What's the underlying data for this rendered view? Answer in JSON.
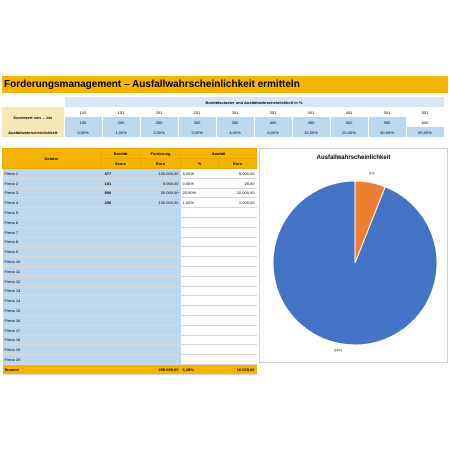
{
  "title": "Forderungsmanagement – Ausfallwahrscheinlichkeit ermitteln",
  "score_table": {
    "header": "Bonitätscluster und Ausfallwahrscheinlichkeit in %",
    "row_label_range": "Scorewert von ... bis",
    "row_label_pd": "Ausfallwahrscheinlichkeit",
    "from": [
      "100",
      "151",
      "201",
      "251",
      "301",
      "351",
      "401",
      "451",
      "501",
      "551"
    ],
    "to": [
      "150",
      "200",
      "250",
      "300",
      "350",
      "400",
      "450",
      "500",
      "550",
      "600"
    ],
    "pd": [
      "0,50%",
      "1,00%",
      "2,00%",
      "3,00%",
      "4,00%",
      "5,00%",
      "10,00%",
      "20,00%",
      "50,00%",
      "80,00%"
    ]
  },
  "debtor_table": {
    "headers": {
      "debitor": "Debitor",
      "bonitaet": "Bonität",
      "score": "Score",
      "forderung": "Forderung",
      "euro": "Euro",
      "ausfall": "Ausfall",
      "pct": "%",
      "euro2": "Euro"
    },
    "rows": [
      {
        "name": "Firma 1",
        "score": "377",
        "forderung": "100.000,00",
        "pct": "5,00%",
        "euro": "5.000,00"
      },
      {
        "name": "Firma 2",
        "score": "101",
        "forderung": "5.000,00",
        "pct": "0,50%",
        "euro": "25,00"
      },
      {
        "name": "Firma 3",
        "score": "500",
        "forderung": "50.000,00",
        "pct": "20,00%",
        "euro": "10.000,00"
      },
      {
        "name": "Firma 4",
        "score": "200",
        "forderung": "100.000,00",
        "pct": "1,00%",
        "euro": "1.000,00"
      },
      {
        "name": "Firma 5",
        "score": "",
        "forderung": "",
        "pct": "",
        "euro": ""
      },
      {
        "name": "Firma 6",
        "score": "",
        "forderung": "",
        "pct": "",
        "euro": ""
      },
      {
        "name": "Firma 7",
        "score": "",
        "forderung": "",
        "pct": "",
        "euro": ""
      },
      {
        "name": "Firma 8",
        "score": "",
        "forderung": "",
        "pct": "",
        "euro": ""
      },
      {
        "name": "Firma 9",
        "score": "",
        "forderung": "",
        "pct": "",
        "euro": ""
      },
      {
        "name": "Firma 10",
        "score": "",
        "forderung": "",
        "pct": "",
        "euro": ""
      },
      {
        "name": "Firma 11",
        "score": "",
        "forderung": "",
        "pct": "",
        "euro": ""
      },
      {
        "name": "Firma 12",
        "score": "",
        "forderung": "",
        "pct": "",
        "euro": ""
      },
      {
        "name": "Firma 13",
        "score": "",
        "forderung": "",
        "pct": "",
        "euro": ""
      },
      {
        "name": "Firma 14",
        "score": "",
        "forderung": "",
        "pct": "",
        "euro": ""
      },
      {
        "name": "Firma 15",
        "score": "",
        "forderung": "",
        "pct": "",
        "euro": ""
      },
      {
        "name": "Firma 16",
        "score": "",
        "forderung": "",
        "pct": "",
        "euro": ""
      },
      {
        "name": "Firma 17",
        "score": "",
        "forderung": "",
        "pct": "",
        "euro": ""
      },
      {
        "name": "Firma 18",
        "score": "",
        "forderung": "",
        "pct": "",
        "euro": ""
      },
      {
        "name": "Firma 19",
        "score": "",
        "forderung": "",
        "pct": "",
        "euro": ""
      },
      {
        "name": "Firma 20",
        "score": "",
        "forderung": "",
        "pct": "",
        "euro": ""
      }
    ],
    "sum": {
      "label": "Summe",
      "forderung": "255.000,00",
      "pct": "6,28%",
      "euro": "16.025,00"
    }
  },
  "colors": {
    "accent": "#f5b400",
    "blue_cell": "#bdd7ee",
    "pie_blue": "#4472c4",
    "pie_orange": "#ed7d31"
  },
  "chart_data": {
    "type": "pie",
    "title": "Ausfallwahrscheinlichkeit",
    "series": [
      {
        "values": [
          94,
          6
        ],
        "labels": [
          "94%",
          "6%"
        ]
      }
    ]
  }
}
